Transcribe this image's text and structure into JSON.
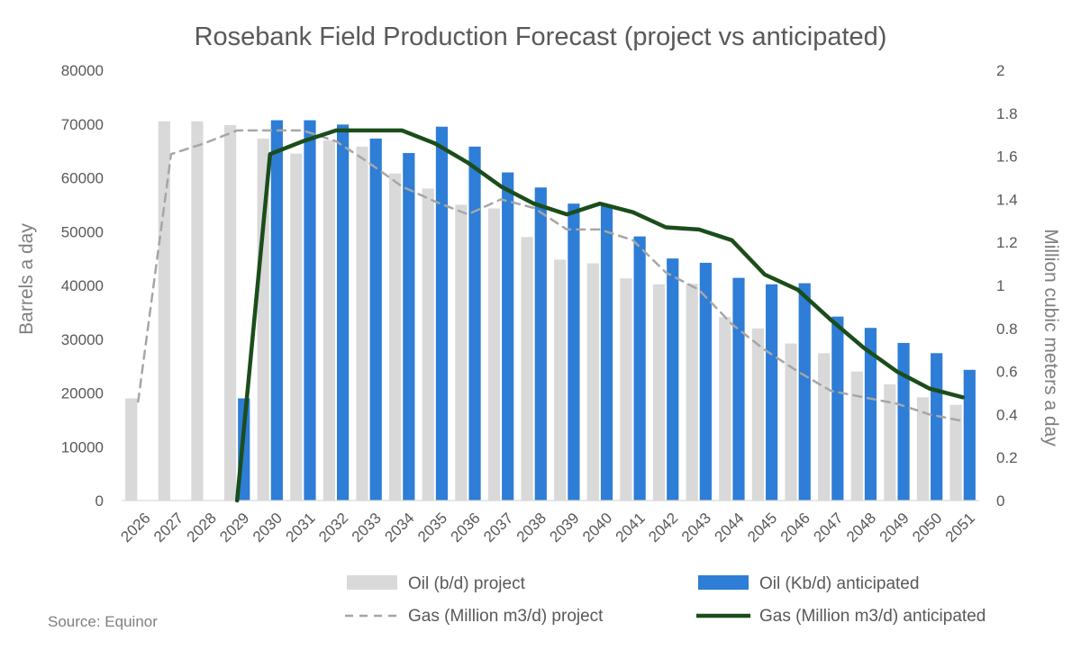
{
  "chart_data": {
    "type": "bar",
    "title": "Rosebank Field Production Forecast (project vs anticipated)",
    "ylabel": "Barrels a day",
    "y2label": "Million cubic meters a day",
    "ylim": [
      0,
      80000
    ],
    "y2lim": [
      0,
      2
    ],
    "yticks": [
      "0",
      "10000",
      "20000",
      "30000",
      "40000",
      "50000",
      "60000",
      "70000",
      "80000"
    ],
    "y2ticks": [
      "0",
      "0.2",
      "0.4",
      "0.6",
      "0.8",
      "1",
      "1.2",
      "1.4",
      "1.6",
      "1.8",
      "2"
    ],
    "categories": [
      "2026",
      "2027",
      "2028",
      "2029",
      "2030",
      "2031",
      "2032",
      "2033",
      "2034",
      "2035",
      "2036",
      "2037",
      "2038",
      "2039",
      "2040",
      "2041",
      "2042",
      "2043",
      "2044",
      "2045",
      "2046",
      "2047",
      "2048",
      "2049",
      "2050",
      "2051"
    ],
    "series": [
      {
        "name": "Oil (b/d) project",
        "kind": "bar",
        "axis": "left",
        "color": "#d9d9d9",
        "values": [
          19000,
          70500,
          70500,
          69800,
          67300,
          64500,
          67000,
          65800,
          60800,
          58000,
          55000,
          54300,
          49000,
          44800,
          44100,
          41300,
          40200,
          40300,
          34100,
          32000,
          29200,
          27400,
          24000,
          21600,
          19200,
          17800
        ]
      },
      {
        "name": "Oil (Kb/d) anticipated",
        "kind": "bar",
        "axis": "left",
        "color": "#2e7dd7",
        "values": [
          null,
          null,
          null,
          19000,
          70700,
          70700,
          69900,
          67300,
          64600,
          69500,
          65800,
          61000,
          58200,
          55200,
          54900,
          49100,
          45000,
          44200,
          41400,
          40200,
          40400,
          34200,
          32100,
          29300,
          27400,
          24300
        ]
      },
      {
        "name": "Gas (Million m3/d) project",
        "kind": "line-dashed",
        "axis": "right",
        "color": "#a6a6a6",
        "values": [
          0.46,
          1.61,
          1.66,
          1.72,
          1.72,
          1.72,
          1.67,
          1.57,
          1.46,
          1.39,
          1.33,
          1.4,
          1.36,
          1.26,
          1.26,
          1.21,
          1.06,
          0.98,
          0.82,
          0.7,
          0.6,
          0.51,
          0.48,
          0.45,
          0.4,
          0.37
        ]
      },
      {
        "name": "Gas (Million m3/d) anticipated",
        "kind": "line",
        "axis": "right",
        "color": "#1b4d1b",
        "values": [
          null,
          null,
          null,
          0,
          1.61,
          1.67,
          1.72,
          1.72,
          1.72,
          1.66,
          1.57,
          1.46,
          1.38,
          1.33,
          1.38,
          1.34,
          1.27,
          1.26,
          1.21,
          1.05,
          0.98,
          0.84,
          0.71,
          0.6,
          0.52,
          0.48
        ]
      }
    ],
    "legend_position": "bottom",
    "grid": false,
    "source": "Source: Equinor"
  }
}
